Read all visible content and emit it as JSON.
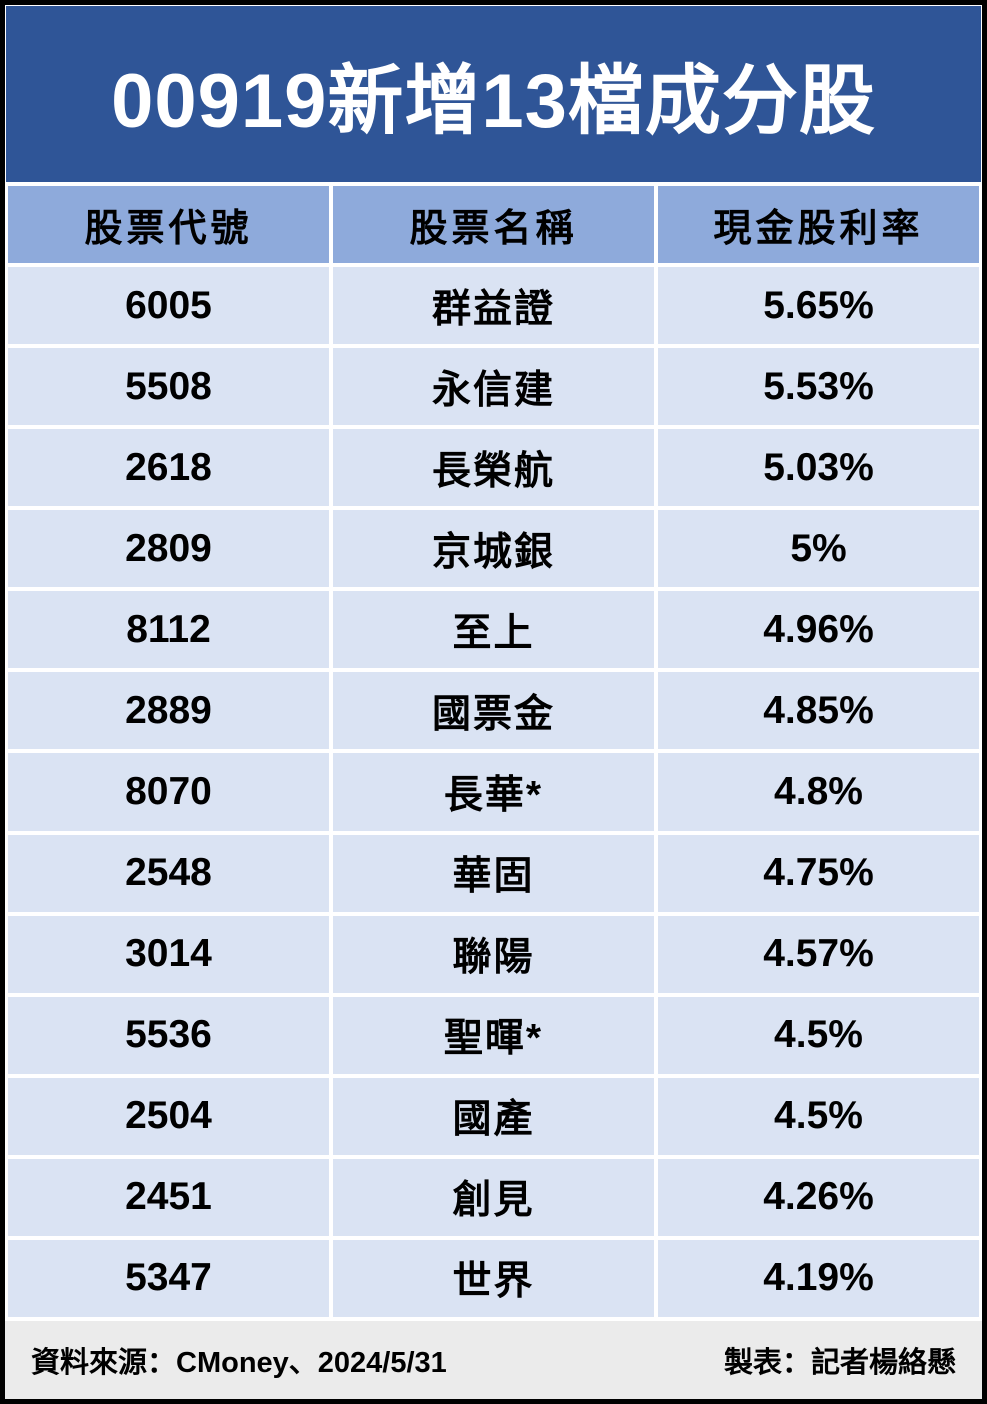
{
  "title": "00919新增13檔成分股",
  "chart_data": {
    "type": "table",
    "title": "00919新增13檔成分股",
    "columns": [
      "股票代號",
      "股票名稱",
      "現金股利率"
    ],
    "rows": [
      [
        "6005",
        "群益證",
        "5.65%"
      ],
      [
        "5508",
        "永信建",
        "5.53%"
      ],
      [
        "2618",
        "長榮航",
        "5.03%"
      ],
      [
        "2809",
        "京城銀",
        "5%"
      ],
      [
        "8112",
        "至上",
        "4.96%"
      ],
      [
        "2889",
        "國票金",
        "4.85%"
      ],
      [
        "8070",
        "長華*",
        "4.8%"
      ],
      [
        "2548",
        "華固",
        "4.75%"
      ],
      [
        "3014",
        "聯陽",
        "4.57%"
      ],
      [
        "5536",
        "聖暉*",
        "4.5%"
      ],
      [
        "2504",
        "國產",
        "4.5%"
      ],
      [
        "2451",
        "創見",
        "4.26%"
      ],
      [
        "5347",
        "世界",
        "4.19%"
      ]
    ]
  },
  "footer": {
    "source": "資料來源：CMoney、2024/5/31",
    "credit": "製表：記者楊絡懸"
  },
  "colors": {
    "frame": "#000000",
    "title_bg": "#2F5597",
    "title_text": "#FFFFFF",
    "header_row_bg": "#8EAADB",
    "data_row_bg": "#DAE3F3",
    "separator": "#FFFFFF",
    "footer_bg": "#EBEBEB",
    "body_text": "#000000"
  }
}
